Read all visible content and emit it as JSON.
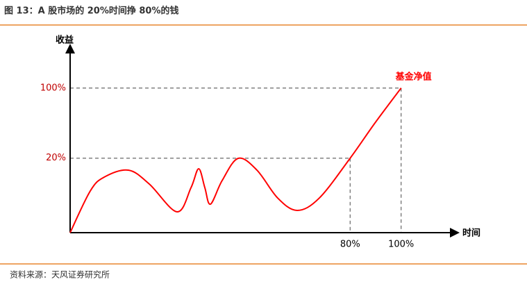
{
  "chart_data": {
    "type": "line",
    "title": "图 13：A 股市场的 20%时间挣 80%的钱",
    "source": "资料来源：天风证券研究所",
    "xlabel": "时间",
    "ylabel": "收益",
    "xlim": [
      -30,
      120
    ],
    "ylim": [
      -65,
      145
    ],
    "xticks": [
      {
        "value": 80,
        "label": "80%"
      },
      {
        "value": 100,
        "label": "100%"
      }
    ],
    "yticks": [
      {
        "value": 20,
        "label": "20%"
      },
      {
        "value": 100,
        "label": "100%"
      }
    ],
    "x": [
      -30,
      -22.1,
      -16.6,
      -7.1,
      1.1,
      12,
      17.5,
      20.5,
      22.9,
      25.1,
      29.7,
      36,
      43.4,
      51.5,
      59.2,
      67.9,
      80,
      89.8,
      100
    ],
    "series": [
      {
        "name": "基金净值",
        "color": "#ff0000",
        "values": [
          -65,
          -17.5,
          -1.6,
          6.3,
          -9.5,
          -41.2,
          -13.5,
          7.9,
          -13.5,
          -32.5,
          -5.6,
          19.8,
          6.3,
          -25.4,
          -39.6,
          -25.4,
          20,
          60.4,
          100
        ]
      }
    ]
  }
}
